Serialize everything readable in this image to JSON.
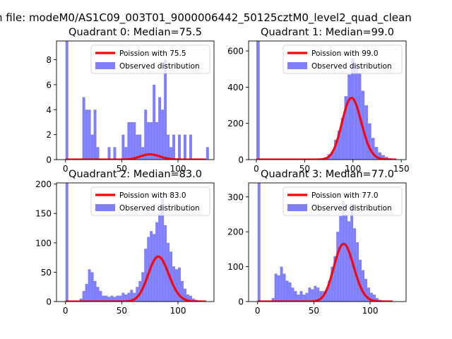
{
  "figure": {
    "suptitle": "n file: modeM0/AS1C09_003T01_9000006442_50125cztM0_level2_quad_clean"
  },
  "colors": {
    "bars": "#7f7fff",
    "poisson": "#ff0000",
    "axis": "#000000",
    "background": "#ffffff"
  },
  "chart_data": [
    {
      "type": "bar",
      "title": "Quadrant 0: Median=75.5",
      "xlim": [
        -8,
        132
      ],
      "ylim": [
        0,
        9.5
      ],
      "xticks": [
        0,
        50,
        100
      ],
      "yticks": [
        0,
        2,
        4,
        6,
        8
      ],
      "bin_width": 2.5,
      "histogram": [
        {
          "x": 0,
          "count": 9.5
        },
        {
          "x": 15,
          "count": 5
        },
        {
          "x": 17.5,
          "count": 4
        },
        {
          "x": 20,
          "count": 4
        },
        {
          "x": 22.5,
          "count": 2
        },
        {
          "x": 25,
          "count": 4
        },
        {
          "x": 27.5,
          "count": 1
        },
        {
          "x": 37.5,
          "count": 1
        },
        {
          "x": 42.5,
          "count": 1
        },
        {
          "x": 50,
          "count": 2
        },
        {
          "x": 52.5,
          "count": 1
        },
        {
          "x": 55,
          "count": 3
        },
        {
          "x": 57.5,
          "count": 3
        },
        {
          "x": 60,
          "count": 3
        },
        {
          "x": 62.5,
          "count": 2
        },
        {
          "x": 65,
          "count": 2
        },
        {
          "x": 67.5,
          "count": 1
        },
        {
          "x": 70,
          "count": 4
        },
        {
          "x": 72.5,
          "count": 3
        },
        {
          "x": 75,
          "count": 3
        },
        {
          "x": 77.5,
          "count": 6
        },
        {
          "x": 80,
          "count": 3
        },
        {
          "x": 82.5,
          "count": 5
        },
        {
          "x": 85,
          "count": 4
        },
        {
          "x": 87.5,
          "count": 8
        },
        {
          "x": 90,
          "count": 2
        },
        {
          "x": 92.5,
          "count": 1
        },
        {
          "x": 95,
          "count": 2
        },
        {
          "x": 100,
          "count": 2
        },
        {
          "x": 105,
          "count": 2
        },
        {
          "x": 110,
          "count": 2
        },
        {
          "x": 125,
          "count": 1
        }
      ],
      "poisson": {
        "mu": 75.5,
        "scale": 9.2,
        "x_range": [
          0,
          125
        ]
      },
      "legend": {
        "position": "top-right",
        "entries": [
          "Poission with 75.5",
          "Observed distribution"
        ]
      }
    },
    {
      "type": "bar",
      "title": "Quadrant 1: Median=99.0",
      "xlim": [
        -8,
        155
      ],
      "ylim": [
        0,
        655
      ],
      "xticks": [
        0,
        50,
        100,
        150
      ],
      "yticks": [
        0,
        200,
        400,
        600
      ],
      "bin_width": 3.5,
      "histogram": [
        {
          "x": 0,
          "count": 655
        },
        {
          "x": 63,
          "count": 5
        },
        {
          "x": 66.5,
          "count": 8
        },
        {
          "x": 70,
          "count": 12
        },
        {
          "x": 73.5,
          "count": 30
        },
        {
          "x": 77,
          "count": 45
        },
        {
          "x": 80.5,
          "count": 110
        },
        {
          "x": 84,
          "count": 160
        },
        {
          "x": 87.5,
          "count": 230
        },
        {
          "x": 91,
          "count": 350
        },
        {
          "x": 94.5,
          "count": 470
        },
        {
          "x": 98,
          "count": 560
        },
        {
          "x": 101.5,
          "count": 520
        },
        {
          "x": 105,
          "count": 480
        },
        {
          "x": 108.5,
          "count": 380
        },
        {
          "x": 112,
          "count": 300
        },
        {
          "x": 115.5,
          "count": 200
        },
        {
          "x": 119,
          "count": 120
        },
        {
          "x": 122.5,
          "count": 70
        },
        {
          "x": 126,
          "count": 40
        },
        {
          "x": 129.5,
          "count": 25
        },
        {
          "x": 133,
          "count": 15
        },
        {
          "x": 136.5,
          "count": 8
        }
      ],
      "poisson": {
        "mu": 99.0,
        "scale": 8500,
        "x_range": [
          0,
          145
        ]
      },
      "legend": {
        "position": "top-right",
        "entries": [
          "Poission with 99.0",
          "Observed distribution"
        ]
      }
    },
    {
      "type": "bar",
      "title": "Quadrant 2: Median=83.0",
      "xlim": [
        -8,
        132
      ],
      "ylim": [
        0,
        202
      ],
      "xticks": [
        0,
        50,
        100
      ],
      "yticks": [
        0,
        50,
        100,
        150,
        200
      ],
      "bin_width": 2.5,
      "histogram": [
        {
          "x": 0,
          "count": 202
        },
        {
          "x": 12.5,
          "count": 5
        },
        {
          "x": 15,
          "count": 18
        },
        {
          "x": 17.5,
          "count": 30
        },
        {
          "x": 20,
          "count": 55
        },
        {
          "x": 22.5,
          "count": 50
        },
        {
          "x": 25,
          "count": 35
        },
        {
          "x": 27.5,
          "count": 25
        },
        {
          "x": 30,
          "count": 18
        },
        {
          "x": 32.5,
          "count": 10
        },
        {
          "x": 35,
          "count": 10
        },
        {
          "x": 37.5,
          "count": 8
        },
        {
          "x": 40,
          "count": 10
        },
        {
          "x": 42.5,
          "count": 8
        },
        {
          "x": 45,
          "count": 10
        },
        {
          "x": 47.5,
          "count": 10
        },
        {
          "x": 50,
          "count": 15
        },
        {
          "x": 52.5,
          "count": 12
        },
        {
          "x": 55,
          "count": 15
        },
        {
          "x": 57.5,
          "count": 20
        },
        {
          "x": 60,
          "count": 15
        },
        {
          "x": 62.5,
          "count": 25
        },
        {
          "x": 65,
          "count": 35
        },
        {
          "x": 67.5,
          "count": 50
        },
        {
          "x": 70,
          "count": 90
        },
        {
          "x": 72.5,
          "count": 110
        },
        {
          "x": 75,
          "count": 120
        },
        {
          "x": 77.5,
          "count": 115
        },
        {
          "x": 80,
          "count": 135
        },
        {
          "x": 82.5,
          "count": 150
        },
        {
          "x": 85,
          "count": 175
        },
        {
          "x": 87.5,
          "count": 130
        },
        {
          "x": 90,
          "count": 100
        },
        {
          "x": 92.5,
          "count": 85
        },
        {
          "x": 95,
          "count": 60
        },
        {
          "x": 97.5,
          "count": 55
        },
        {
          "x": 100,
          "count": 58
        },
        {
          "x": 102.5,
          "count": 35
        },
        {
          "x": 105,
          "count": 22
        },
        {
          "x": 107.5,
          "count": 12
        },
        {
          "x": 110,
          "count": 10
        },
        {
          "x": 112.5,
          "count": 5
        },
        {
          "x": 115,
          "count": 3
        },
        {
          "x": 117.5,
          "count": 2
        }
      ],
      "poisson": {
        "mu": 83.0,
        "scale": 1750,
        "x_range": [
          0,
          125
        ]
      },
      "legend": {
        "position": "top-right",
        "entries": [
          "Poission with 83.0",
          "Observed distribution"
        ]
      }
    },
    {
      "type": "bar",
      "title": "Quadrant 3: Median=77.0",
      "xlim": [
        -8,
        132
      ],
      "ylim": [
        0,
        340
      ],
      "xticks": [
        0,
        50,
        100
      ],
      "yticks": [
        0,
        100,
        200,
        300
      ],
      "bin_width": 2.5,
      "histogram": [
        {
          "x": 0,
          "count": 340
        },
        {
          "x": 12.5,
          "count": 10
        },
        {
          "x": 15,
          "count": 80
        },
        {
          "x": 17.5,
          "count": 75
        },
        {
          "x": 20,
          "count": 100
        },
        {
          "x": 22.5,
          "count": 80
        },
        {
          "x": 25,
          "count": 60
        },
        {
          "x": 27.5,
          "count": 55
        },
        {
          "x": 30,
          "count": 40
        },
        {
          "x": 32.5,
          "count": 30
        },
        {
          "x": 35,
          "count": 20
        },
        {
          "x": 37.5,
          "count": 30
        },
        {
          "x": 40,
          "count": 20
        },
        {
          "x": 42.5,
          "count": 25
        },
        {
          "x": 45,
          "count": 40
        },
        {
          "x": 47.5,
          "count": 35
        },
        {
          "x": 50,
          "count": 45
        },
        {
          "x": 52.5,
          "count": 40
        },
        {
          "x": 55,
          "count": 30
        },
        {
          "x": 57.5,
          "count": 30
        },
        {
          "x": 60,
          "count": 35
        },
        {
          "x": 62.5,
          "count": 60
        },
        {
          "x": 65,
          "count": 100
        },
        {
          "x": 67.5,
          "count": 130
        },
        {
          "x": 70,
          "count": 200
        },
        {
          "x": 72.5,
          "count": 245
        },
        {
          "x": 75,
          "count": 290
        },
        {
          "x": 77.5,
          "count": 250
        },
        {
          "x": 80,
          "count": 230
        },
        {
          "x": 82.5,
          "count": 280
        },
        {
          "x": 85,
          "count": 210
        },
        {
          "x": 87.5,
          "count": 170
        },
        {
          "x": 90,
          "count": 120
        },
        {
          "x": 92.5,
          "count": 90
        },
        {
          "x": 95,
          "count": 65
        },
        {
          "x": 97.5,
          "count": 40
        },
        {
          "x": 100,
          "count": 25
        },
        {
          "x": 102.5,
          "count": 20
        },
        {
          "x": 105,
          "count": 10
        },
        {
          "x": 107.5,
          "count": 5
        },
        {
          "x": 110,
          "count": 3
        }
      ],
      "poisson": {
        "mu": 77.0,
        "scale": 3640,
        "x_range": [
          0,
          120
        ]
      },
      "legend": {
        "position": "top-right",
        "entries": [
          "Poission with 77.0",
          "Observed distribution"
        ]
      }
    }
  ]
}
